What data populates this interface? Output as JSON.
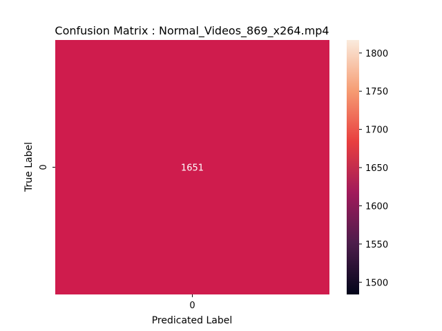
{
  "chart_data": {
    "type": "heatmap",
    "title": "Confusion Matrix : Normal_Videos_869_x264.mp4",
    "xlabel": "Predicated Label",
    "ylabel": "True Label",
    "x_categories": [
      "0"
    ],
    "y_categories": [
      "0"
    ],
    "values": [
      [
        1651
      ]
    ],
    "cell_labels": [
      [
        "1651"
      ]
    ],
    "colorbar": {
      "range": [
        1484,
        1817
      ],
      "ticks": [
        1500,
        1550,
        1600,
        1650,
        1700,
        1750,
        1800
      ],
      "tick_labels": [
        "1500",
        "1550",
        "1600",
        "1650",
        "1700",
        "1750",
        "1800"
      ],
      "colormap": "rocket",
      "colors": [
        "#03051a",
        "#4c1d4b",
        "#a11a5b",
        "#e83f3f",
        "#f69c73",
        "#faebdd"
      ]
    },
    "cell_color": "#cf1c4d",
    "cell_text_color": "#ffffff"
  }
}
